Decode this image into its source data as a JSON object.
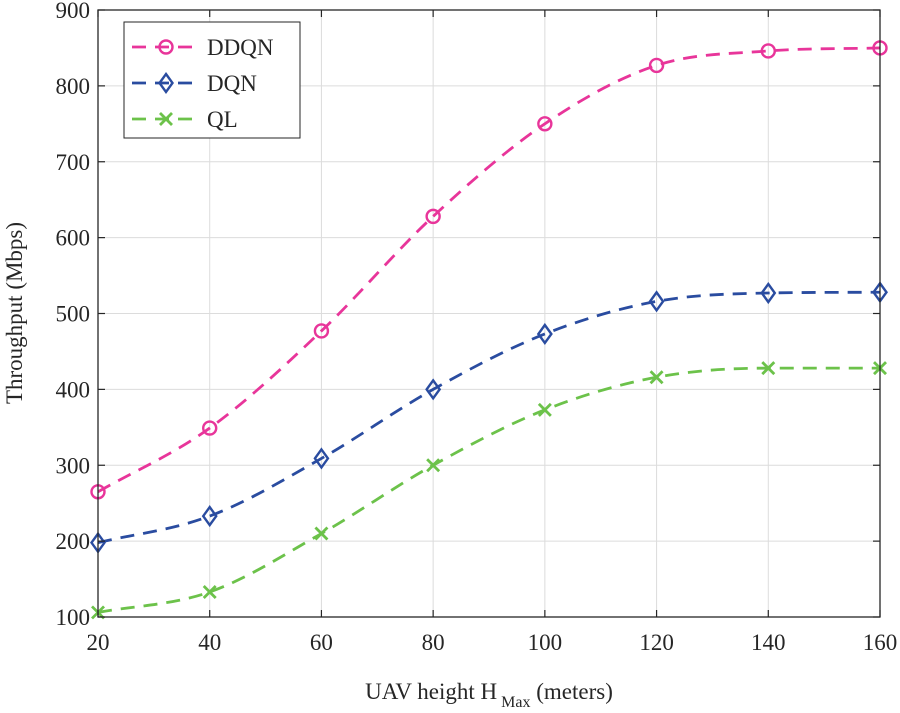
{
  "chart_data": {
    "type": "line",
    "title": "",
    "xlabel": {
      "main": "UAV height H",
      "sub": "Max",
      "unit": " (meters)"
    },
    "ylabel": "Throughput (Mbps)",
    "x": [
      20,
      40,
      60,
      80,
      100,
      120,
      140,
      160
    ],
    "xlim": [
      20,
      160
    ],
    "ylim": [
      100,
      900
    ],
    "xticks": [
      "20",
      "40",
      "60",
      "80",
      "100",
      "120",
      "140",
      "160"
    ],
    "yticks": [
      "100",
      "200",
      "300",
      "400",
      "500",
      "600",
      "700",
      "800",
      "900"
    ],
    "grid": true,
    "legend_position": "top-left",
    "series": [
      {
        "name": "DDQN",
        "color": "#e8359a",
        "marker": "circle",
        "line": "dashed",
        "values": [
          265,
          349,
          477,
          628,
          750,
          827,
          846,
          850
        ]
      },
      {
        "name": "DQN",
        "color": "#2a4ca0",
        "marker": "diamond",
        "line": "dashed",
        "values": [
          198,
          233,
          309,
          400,
          473,
          516,
          527,
          528
        ]
      },
      {
        "name": "QL",
        "color": "#6cc24a",
        "marker": "x",
        "line": "dashed",
        "values": [
          106,
          133,
          210,
          300,
          373,
          416,
          428,
          428
        ]
      }
    ]
  }
}
